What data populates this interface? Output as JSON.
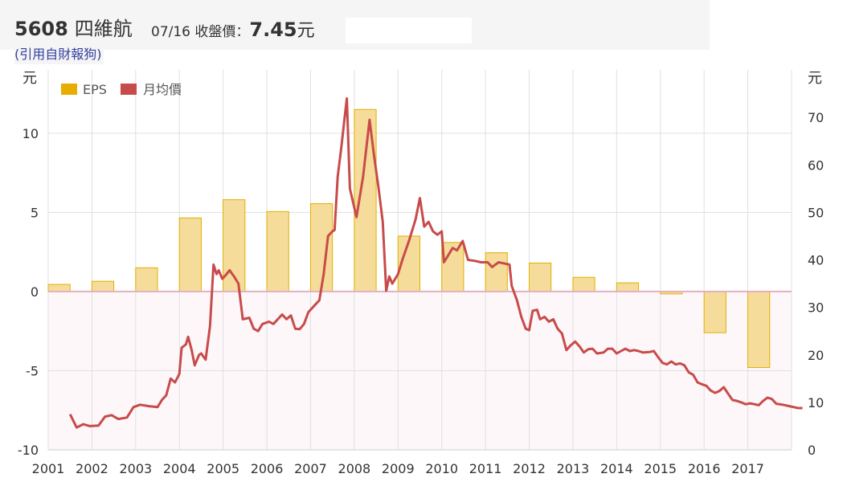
{
  "header": {
    "code": "5608",
    "name": "四維航",
    "date": "07/16",
    "close_label": "收盤價：",
    "price": "7.45",
    "currency": "元",
    "source": "(引用自財報狗)"
  },
  "chart_data": {
    "type": "bar+line",
    "left_axis": {
      "label": "元",
      "ticks": [
        -10,
        -5,
        0,
        5,
        10
      ],
      "range": [
        -10,
        14
      ]
    },
    "right_axis": {
      "label": "元",
      "ticks": [
        0,
        10,
        20,
        30,
        40,
        50,
        60,
        70
      ],
      "range": [
        0,
        80
      ]
    },
    "x_ticks": [
      "2001",
      "2002",
      "2003",
      "2004",
      "2005",
      "2006",
      "2007",
      "2008",
      "2009",
      "2010",
      "2011",
      "2012",
      "2013",
      "2014",
      "2015",
      "2016",
      "2017"
    ],
    "grid": true,
    "legend": {
      "position": "top-left",
      "items": [
        "EPS",
        "月均價"
      ]
    },
    "colors": {
      "eps_fill": "#f6dc9a",
      "eps_stroke": "#e1b000",
      "eps_legend": "#e8ad00",
      "price_line": "#c84b4b",
      "negative_zone": "#fdf7f9",
      "zero_line": "#e3b0c0",
      "grid": "#e0e0e0"
    },
    "eps": {
      "name": "EPS",
      "years": [
        2001,
        2002,
        2003,
        2004,
        2005,
        2006,
        2007,
        2008,
        2009,
        2010,
        2011,
        2012,
        2013,
        2014,
        2015,
        2016,
        2017
      ],
      "values": [
        0.45,
        0.65,
        1.5,
        4.65,
        5.8,
        5.05,
        5.55,
        11.5,
        3.5,
        3.1,
        2.45,
        1.8,
        0.9,
        0.55,
        -0.15,
        -2.6,
        -4.8
      ]
    },
    "price": {
      "name": "月均價",
      "points": [
        [
          2001.5,
          7.5
        ],
        [
          2001.65,
          4.7
        ],
        [
          2001.8,
          5.4
        ],
        [
          2001.95,
          5.0
        ],
        [
          2002.15,
          5.1
        ],
        [
          2002.3,
          7.0
        ],
        [
          2002.45,
          7.3
        ],
        [
          2002.6,
          6.5
        ],
        [
          2002.8,
          6.8
        ],
        [
          2002.95,
          9.0
        ],
        [
          2003.1,
          9.5
        ],
        [
          2003.3,
          9.2
        ],
        [
          2003.5,
          9.0
        ],
        [
          2003.6,
          10.5
        ],
        [
          2003.7,
          11.5
        ],
        [
          2003.8,
          15.0
        ],
        [
          2003.9,
          14.2
        ],
        [
          2004.0,
          16.0
        ],
        [
          2004.05,
          21.5
        ],
        [
          2004.15,
          22.2
        ],
        [
          2004.2,
          23.8
        ],
        [
          2004.28,
          21.0
        ],
        [
          2004.35,
          17.8
        ],
        [
          2004.45,
          20.0
        ],
        [
          2004.5,
          20.3
        ],
        [
          2004.6,
          19.0
        ],
        [
          2004.7,
          26.0
        ],
        [
          2004.78,
          39.0
        ],
        [
          2004.85,
          37.0
        ],
        [
          2004.9,
          37.8
        ],
        [
          2004.98,
          36.0
        ],
        [
          2005.05,
          36.7
        ],
        [
          2005.15,
          37.8
        ],
        [
          2005.25,
          36.5
        ],
        [
          2005.35,
          35.0
        ],
        [
          2005.45,
          27.5
        ],
        [
          2005.6,
          27.8
        ],
        [
          2005.7,
          25.5
        ],
        [
          2005.8,
          25.0
        ],
        [
          2005.9,
          26.5
        ],
        [
          2006.05,
          27.0
        ],
        [
          2006.15,
          26.5
        ],
        [
          2006.25,
          27.5
        ],
        [
          2006.35,
          28.5
        ],
        [
          2006.45,
          27.5
        ],
        [
          2006.55,
          28.3
        ],
        [
          2006.65,
          25.5
        ],
        [
          2006.75,
          25.4
        ],
        [
          2006.85,
          26.5
        ],
        [
          2006.95,
          29.0
        ],
        [
          2007.1,
          30.5
        ],
        [
          2007.2,
          31.5
        ],
        [
          2007.3,
          37.0
        ],
        [
          2007.4,
          45.0
        ],
        [
          2007.5,
          46.0
        ],
        [
          2007.55,
          46.3
        ],
        [
          2007.62,
          57.5
        ],
        [
          2007.7,
          63.5
        ],
        [
          2007.78,
          70.0
        ],
        [
          2007.83,
          74.0
        ],
        [
          2007.9,
          55.0
        ],
        [
          2008.05,
          49.0
        ],
        [
          2008.2,
          57.5
        ],
        [
          2008.35,
          69.5
        ],
        [
          2008.45,
          62.0
        ],
        [
          2008.55,
          55.5
        ],
        [
          2008.65,
          48.0
        ],
        [
          2008.73,
          33.5
        ],
        [
          2008.8,
          36.5
        ],
        [
          2008.87,
          35.0
        ],
        [
          2009.0,
          37.0
        ],
        [
          2009.1,
          40.0
        ],
        [
          2009.25,
          44.0
        ],
        [
          2009.4,
          48.5
        ],
        [
          2009.5,
          53.0
        ],
        [
          2009.6,
          47.0
        ],
        [
          2009.7,
          48.0
        ],
        [
          2009.8,
          46.0
        ],
        [
          2009.9,
          45.3
        ],
        [
          2010.0,
          46.0
        ],
        [
          2010.05,
          39.5
        ],
        [
          2010.15,
          41.0
        ],
        [
          2010.25,
          42.5
        ],
        [
          2010.35,
          42.0
        ],
        [
          2010.48,
          44.0
        ],
        [
          2010.6,
          40.0
        ],
        [
          2010.75,
          39.8
        ],
        [
          2010.9,
          39.5
        ],
        [
          2011.05,
          39.5
        ],
        [
          2011.15,
          38.5
        ],
        [
          2011.3,
          39.5
        ],
        [
          2011.45,
          39.2
        ],
        [
          2011.55,
          39.0
        ],
        [
          2011.6,
          34.5
        ],
        [
          2011.72,
          31.5
        ],
        [
          2011.82,
          28.0
        ],
        [
          2011.92,
          25.5
        ],
        [
          2012.0,
          25.2
        ],
        [
          2012.08,
          29.3
        ],
        [
          2012.18,
          29.5
        ],
        [
          2012.25,
          27.5
        ],
        [
          2012.35,
          28.0
        ],
        [
          2012.45,
          27.0
        ],
        [
          2012.55,
          27.5
        ],
        [
          2012.65,
          25.5
        ],
        [
          2012.75,
          24.5
        ],
        [
          2012.85,
          21.0
        ],
        [
          2012.95,
          22.0
        ],
        [
          2013.05,
          22.8
        ],
        [
          2013.15,
          21.8
        ],
        [
          2013.25,
          20.5
        ],
        [
          2013.35,
          21.2
        ],
        [
          2013.45,
          21.3
        ],
        [
          2013.55,
          20.3
        ],
        [
          2013.7,
          20.5
        ],
        [
          2013.8,
          21.3
        ],
        [
          2013.9,
          21.3
        ],
        [
          2014.0,
          20.3
        ],
        [
          2014.1,
          20.8
        ],
        [
          2014.2,
          21.3
        ],
        [
          2014.3,
          20.8
        ],
        [
          2014.4,
          21.0
        ],
        [
          2014.5,
          20.8
        ],
        [
          2014.6,
          20.5
        ],
        [
          2014.75,
          20.6
        ],
        [
          2014.85,
          20.8
        ],
        [
          2014.95,
          19.5
        ],
        [
          2015.05,
          18.3
        ],
        [
          2015.15,
          18.0
        ],
        [
          2015.25,
          18.6
        ],
        [
          2015.35,
          18.0
        ],
        [
          2015.45,
          18.2
        ],
        [
          2015.55,
          17.8
        ],
        [
          2015.65,
          16.3
        ],
        [
          2015.75,
          15.8
        ],
        [
          2015.85,
          14.2
        ],
        [
          2015.95,
          13.8
        ],
        [
          2016.05,
          13.5
        ],
        [
          2016.15,
          12.5
        ],
        [
          2016.25,
          12.0
        ],
        [
          2016.35,
          12.4
        ],
        [
          2016.45,
          13.2
        ],
        [
          2016.55,
          11.8
        ],
        [
          2016.65,
          10.5
        ],
        [
          2016.75,
          10.3
        ],
        [
          2016.85,
          10.0
        ],
        [
          2016.95,
          9.6
        ],
        [
          2017.05,
          9.8
        ],
        [
          2017.15,
          9.6
        ],
        [
          2017.25,
          9.4
        ],
        [
          2017.35,
          10.3
        ],
        [
          2017.45,
          11.0
        ],
        [
          2017.55,
          10.7
        ],
        [
          2017.65,
          9.7
        ],
        [
          2017.8,
          9.5
        ],
        [
          2017.95,
          9.2
        ],
        [
          2018.05,
          9.0
        ],
        [
          2018.15,
          8.8
        ],
        [
          2018.25,
          8.8
        ]
      ]
    }
  }
}
